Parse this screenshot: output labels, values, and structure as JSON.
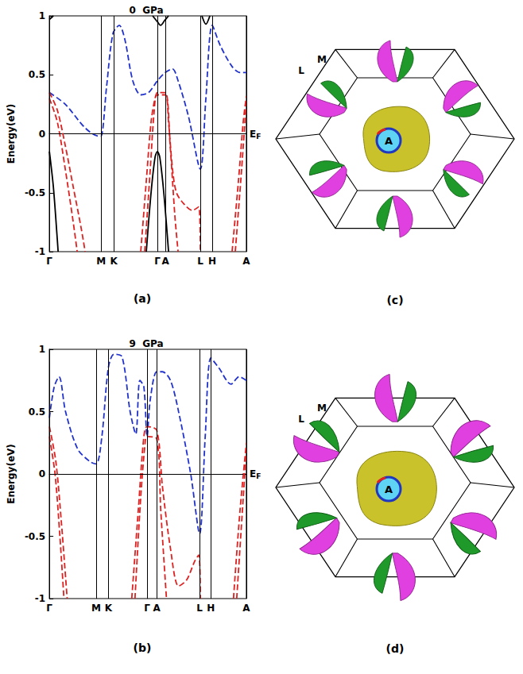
{
  "chart_data": [
    {
      "type": "line",
      "title": "0  GPa",
      "panel_label": "(a)",
      "y_label": "Energy(eV)",
      "xlim": [
        0,
        2.48
      ],
      "xticks": [
        {
          "value": 0,
          "label": "Γ"
        },
        {
          "value": 0.65,
          "label": "M"
        },
        {
          "value": 0.81,
          "label": "K"
        },
        {
          "value": 1.36,
          "label": "Γ"
        },
        {
          "value": 1.46,
          "label": "A"
        },
        {
          "value": 1.9,
          "label": "L"
        },
        {
          "value": 2.05,
          "label": "H"
        },
        {
          "value": 2.48,
          "label": "A"
        }
      ],
      "ylim": [
        -1,
        1
      ],
      "yticks": [
        -1,
        -0.5,
        0,
        0.5,
        1
      ],
      "grid": true,
      "annotations": [
        {
          "text": "E",
          "subscript": "F",
          "y": 0
        }
      ],
      "series": [
        {
          "color": "#2233cc",
          "line_style": "dashed",
          "x": [
            0,
            0.2,
            0.45,
            0.62,
            0.65,
            0.72,
            0.8,
            0.88,
            0.95,
            1.05,
            1.15,
            1.25,
            1.36,
            1.46,
            1.55,
            1.62,
            1.75,
            1.9,
            1.97,
            2.05,
            2.15,
            2.3,
            2.4,
            2.48
          ],
          "values": [
            0.35,
            0.25,
            0.05,
            -0.02,
            -0.02,
            0.4,
            0.85,
            0.92,
            0.8,
            0.45,
            0.33,
            0.35,
            0.45,
            0.52,
            0.55,
            0.45,
            0.15,
            -0.3,
            0.3,
            0.92,
            0.75,
            0.57,
            0.52,
            0.52
          ]
        },
        {
          "color": "#dd2222",
          "line_style": "dashed",
          "x": [
            0,
            0.1,
            0.2,
            0.3,
            0.4,
            0.45
          ],
          "values": [
            0.35,
            0.2,
            -0.1,
            -0.45,
            -0.8,
            -1
          ]
        },
        {
          "color": "#dd2222",
          "line_style": "dashed",
          "x": [
            0,
            0.1,
            0.2,
            0.3,
            0.35
          ],
          "values": [
            0.3,
            0.1,
            -0.3,
            -0.75,
            -1
          ]
        },
        {
          "color": "#dd2222",
          "line_style": "dashed",
          "x": [
            1.15,
            1.22,
            1.28,
            1.33,
            1.36,
            1.46,
            1.5,
            1.55,
            1.6,
            1.7,
            1.8,
            1.88,
            1.9
          ],
          "values": [
            -1,
            -0.4,
            0.1,
            0.3,
            0.33,
            0.33,
            0.1,
            -0.3,
            -0.5,
            -0.6,
            -0.65,
            -0.62,
            -1
          ]
        },
        {
          "color": "#dd2222",
          "line_style": "dashed",
          "x": [
            1.2,
            1.27,
            1.32,
            1.36,
            1.46,
            1.52,
            1.58,
            1.62
          ],
          "values": [
            -1,
            -0.3,
            0.2,
            0.35,
            0.35,
            -0.1,
            -0.7,
            -1
          ]
        },
        {
          "color": "#dd2222",
          "line_style": "dashed",
          "x": [
            2.3,
            2.38,
            2.44,
            2.48
          ],
          "values": [
            -1,
            -0.4,
            0.1,
            0.32
          ]
        },
        {
          "color": "#dd2222",
          "line_style": "dashed",
          "x": [
            2.34,
            2.42,
            2.48
          ],
          "values": [
            -1,
            -0.3,
            0.28
          ]
        },
        {
          "color": "#000000",
          "line_style": "solid",
          "x": [
            0,
            0.05,
            0.1,
            0.11
          ],
          "values": [
            -0.15,
            -0.45,
            -0.9,
            -1
          ]
        },
        {
          "color": "#000000",
          "line_style": "solid",
          "x": [
            1.22,
            1.28,
            1.33,
            1.36,
            1.39,
            1.44,
            1.5
          ],
          "values": [
            -1,
            -0.5,
            -0.2,
            -0.15,
            -0.2,
            -0.5,
            -1
          ]
        },
        {
          "color": "#000000",
          "line_style": "solid",
          "x": [
            0,
            0.05
          ],
          "values": [
            0.97,
            1
          ]
        },
        {
          "color": "#000000",
          "line_style": "solid",
          "x": [
            1.3,
            1.36,
            1.4,
            1.45,
            1.5
          ],
          "values": [
            1,
            0.95,
            0.92,
            0.96,
            1
          ]
        },
        {
          "color": "#000000",
          "line_style": "solid",
          "x": [
            1.92,
            1.97,
            2.02
          ],
          "values": [
            1,
            0.93,
            1
          ]
        }
      ]
    },
    {
      "type": "line",
      "title": "9  GPa",
      "panel_label": "(b)",
      "y_label": "Energy(eV)",
      "xlim": [
        0,
        2.44
      ],
      "xticks": [
        {
          "value": 0,
          "label": "Γ"
        },
        {
          "value": 0.58,
          "label": "M"
        },
        {
          "value": 0.73,
          "label": "K"
        },
        {
          "value": 1.21,
          "label": "Γ"
        },
        {
          "value": 1.33,
          "label": "A"
        },
        {
          "value": 1.86,
          "label": "L"
        },
        {
          "value": 2.0,
          "label": "H"
        },
        {
          "value": 2.44,
          "label": "A"
        }
      ],
      "ylim": [
        -1,
        1
      ],
      "yticks": [
        -1,
        -0.5,
        0,
        0.5,
        1
      ],
      "grid": true,
      "annotations": [
        {
          "text": "E",
          "subscript": "F",
          "y": 0
        }
      ],
      "series": [
        {
          "color": "#2233cc",
          "line_style": "dashed",
          "x": [
            0,
            0.06,
            0.12,
            0.2,
            0.35,
            0.5,
            0.58,
            0.65,
            0.73,
            0.8,
            0.9,
            1.0,
            1.07,
            1.12,
            1.17,
            1.21,
            1.25,
            1.33,
            1.4,
            1.5,
            1.6,
            1.75,
            1.86,
            1.93,
            2.0,
            2.1,
            2.25,
            2.35,
            2.44
          ],
          "values": [
            0.45,
            0.7,
            0.78,
            0.5,
            0.2,
            0.1,
            0.08,
            0.3,
            0.85,
            0.96,
            0.94,
            0.5,
            0.32,
            0.75,
            0.7,
            0.3,
            0.6,
            0.82,
            0.82,
            0.75,
            0.5,
            0,
            -0.48,
            0.3,
            0.93,
            0.85,
            0.72,
            0.78,
            0.75
          ]
        },
        {
          "color": "#dd2222",
          "line_style": "dashed",
          "x": [
            0,
            0.08,
            0.15,
            0.22
          ],
          "values": [
            0.38,
            0.1,
            -0.4,
            -1
          ]
        },
        {
          "color": "#dd2222",
          "line_style": "dashed",
          "x": [
            0,
            0.07,
            0.13,
            0.18
          ],
          "values": [
            0.3,
            0,
            -0.5,
            -1
          ]
        },
        {
          "color": "#dd2222",
          "line_style": "dashed",
          "x": [
            1.02,
            1.1,
            1.17,
            1.21,
            1.33,
            1.4,
            1.5,
            1.6,
            1.7,
            1.8,
            1.85,
            1.87
          ],
          "values": [
            -1,
            -0.3,
            0.3,
            0.38,
            0.35,
            -0.1,
            -0.6,
            -0.9,
            -0.85,
            -0.7,
            -0.65,
            -1
          ]
        },
        {
          "color": "#dd2222",
          "line_style": "dashed",
          "x": [
            1.06,
            1.13,
            1.19,
            1.21,
            1.33,
            1.38,
            1.45
          ],
          "values": [
            -1,
            -0.2,
            0.28,
            0.3,
            0.28,
            -0.3,
            -1
          ]
        },
        {
          "color": "#dd2222",
          "line_style": "dashed",
          "x": [
            2.28,
            2.36,
            2.44
          ],
          "values": [
            -1,
            -0.3,
            0.25
          ]
        },
        {
          "color": "#dd2222",
          "line_style": "dashed",
          "x": [
            2.32,
            2.4,
            2.44
          ],
          "values": [
            -1,
            -0.2,
            0.2
          ]
        }
      ]
    }
  ],
  "fermi_surfaces": [
    {
      "panel_label": "(c)",
      "points": [
        "L",
        "M",
        "A"
      ]
    },
    {
      "panel_label": "(d)",
      "points": [
        "L",
        "M",
        "A"
      ]
    }
  ]
}
